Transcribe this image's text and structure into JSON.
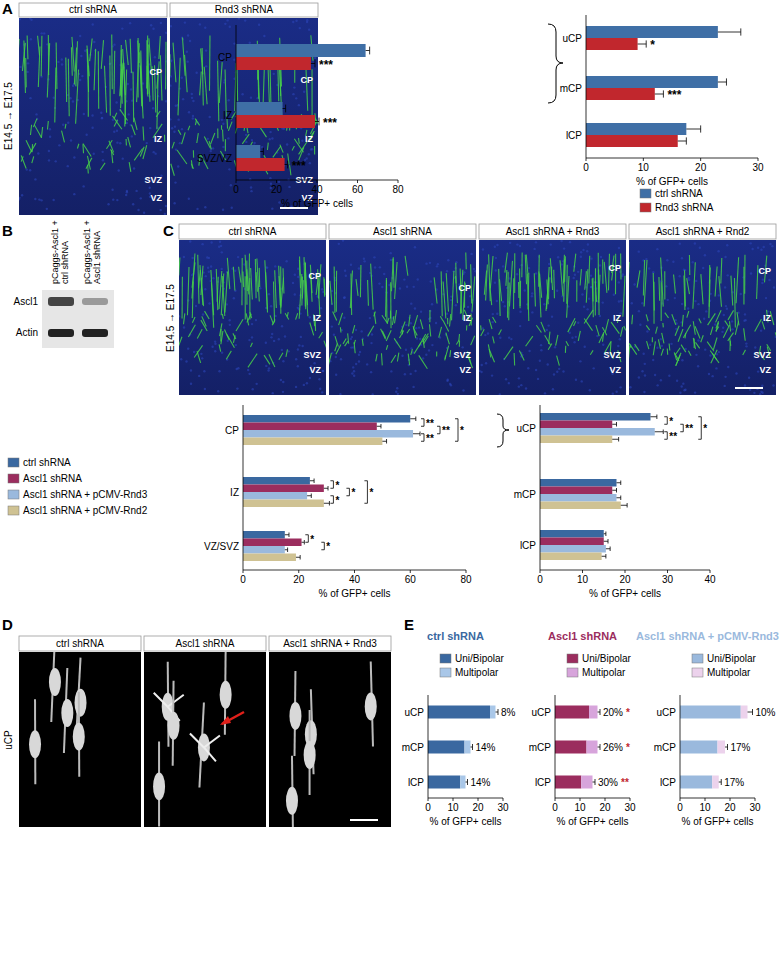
{
  "panels": {
    "A": {
      "letter": "A",
      "side_label": "E14.5 → E17.5",
      "images": [
        {
          "header": "ctrl shRNA",
          "zones": [
            "CP",
            "IZ",
            "SVZ",
            "VZ"
          ]
        },
        {
          "header": "Rnd3 shRNA",
          "zones": [
            "CP",
            "IZ",
            "SVZ",
            "VZ"
          ]
        }
      ]
    },
    "B": {
      "letter": "B",
      "columns": [
        [
          "pCaggs-Ascl1 +",
          "ctrl shRNA"
        ],
        [
          "pCaggs-Ascl1 +",
          "Ascl1 shRNA"
        ]
      ],
      "rows": [
        "Ascl1",
        "Actin"
      ]
    },
    "C": {
      "letter": "C",
      "side_label": "E14.5 → E17.5",
      "images": [
        {
          "header": "ctrl shRNA",
          "zones": [
            "CP",
            "IZ",
            "SVZ",
            "VZ"
          ]
        },
        {
          "header": "Ascl1 shRNA",
          "zones": [
            "CP",
            "IZ",
            "SVZ",
            "VZ"
          ]
        },
        {
          "header": "Ascl1 shRNA + Rnd3",
          "zones": [
            "CP",
            "IZ",
            "SVZ",
            "VZ"
          ]
        },
        {
          "header": "Ascl1 shRNA + Rnd2",
          "zones": [
            "CP",
            "IZ",
            "SVZ",
            "VZ"
          ]
        }
      ]
    },
    "D": {
      "letter": "D",
      "side_label": "uCP",
      "images": [
        {
          "header": "ctrl shRNA"
        },
        {
          "header": "Ascl1 shRNA"
        },
        {
          "header": "Ascl1 shRNA + Rnd3"
        }
      ]
    },
    "E": {
      "letter": "E"
    }
  },
  "chart_data": [
    {
      "type": "bar",
      "orientation": "horizontal",
      "categories": [
        "CP",
        "IZ",
        "SVZ/VZ"
      ],
      "series": [
        {
          "color": "#3f6fa6",
          "values": [
            64,
            23,
            12
          ],
          "errors": [
            2,
            1.5,
            1.5
          ]
        },
        {
          "color": "#c1272d",
          "values": [
            37,
            39,
            24
          ],
          "errors": [
            2,
            2,
            1.5
          ]
        }
      ],
      "xlim": [
        0,
        80
      ],
      "xticks": [
        0,
        20,
        40,
        60,
        80
      ],
      "x_label": "% of GFP+ cells",
      "significance": [
        "***",
        "***",
        "***"
      ]
    },
    {
      "type": "bar",
      "orientation": "horizontal",
      "categories": [
        "uCP",
        "mCP",
        "lCP"
      ],
      "series": [
        {
          "name": "ctrl shRNA",
          "color": "#3f6fa6",
          "values": [
            23,
            23,
            17.5
          ],
          "errors": [
            4,
            1.5,
            2.5
          ]
        },
        {
          "name": "Rnd3 shRNA",
          "color": "#c1272d",
          "values": [
            9,
            12,
            16
          ],
          "errors": [
            1.5,
            1.5,
            1.5
          ]
        }
      ],
      "xlim": [
        0,
        30
      ],
      "xticks": [
        0,
        10,
        20,
        30
      ],
      "x_label": "% of GFP+ cells",
      "significance": [
        "*",
        "***",
        null
      ],
      "legend": "bottom"
    },
    {
      "type": "bar",
      "orientation": "horizontal",
      "categories": [
        "CP",
        "IZ",
        "VZ/SVZ"
      ],
      "series": [
        {
          "name": "ctrl shRNA",
          "color": "#3a68a0",
          "values": [
            60,
            24,
            15
          ],
          "errors": [
            2,
            1.5,
            1.5
          ]
        },
        {
          "name": "Ascl1 shRNA",
          "color": "#9b2d5e",
          "values": [
            48,
            29,
            21
          ],
          "errors": [
            1.5,
            1.5,
            1
          ]
        },
        {
          "name": "Ascl1 shRNA + pCMV-Rnd3",
          "color": "#9ab9dd",
          "values": [
            61,
            23,
            15
          ],
          "errors": [
            2.5,
            1.5,
            1
          ]
        },
        {
          "name": "Ascl1 shRNA + pCMV-Rnd2",
          "color": "#cfc293",
          "values": [
            50,
            29,
            19
          ],
          "errors": [
            1.5,
            2,
            1.5
          ]
        }
      ],
      "xlim": [
        0,
        80
      ],
      "xticks": [
        0,
        20,
        40,
        60,
        80
      ],
      "x_label": "% of GFP+ cells",
      "legend": "left",
      "brackets": [
        {
          "category": 0,
          "series": [
            0,
            1
          ],
          "label": "**"
        },
        {
          "category": 0,
          "series": [
            1,
            2
          ],
          "label": "**"
        },
        {
          "category": 0,
          "series": [
            2,
            3
          ],
          "label": "**"
        },
        {
          "category": 0,
          "series": [
            0,
            3
          ],
          "label": "*"
        },
        {
          "category": 1,
          "series": [
            0,
            1
          ],
          "label": "*"
        },
        {
          "category": 1,
          "series": [
            1,
            2
          ],
          "label": "*"
        },
        {
          "category": 1,
          "series": [
            2,
            3
          ],
          "label": "*"
        },
        {
          "category": 1,
          "series": [
            0,
            3
          ],
          "label": "*"
        },
        {
          "category": 2,
          "series": [
            0,
            1
          ],
          "label": "*"
        },
        {
          "category": 2,
          "series": [
            1,
            2
          ],
          "label": "*"
        }
      ]
    },
    {
      "type": "bar",
      "orientation": "horizontal",
      "categories": [
        "uCP",
        "mCP",
        "lCP"
      ],
      "series": [
        {
          "color": "#3a68a0",
          "values": [
            26,
            18,
            15
          ],
          "errors": [
            1.5,
            1,
            0.5
          ]
        },
        {
          "color": "#9b2d5e",
          "values": [
            17,
            17,
            15
          ],
          "errors": [
            1,
            1,
            1
          ]
        },
        {
          "color": "#9ab9dd",
          "values": [
            27,
            18,
            15.5
          ],
          "errors": [
            2,
            1,
            1
          ]
        },
        {
          "color": "#cfc293",
          "values": [
            17,
            19,
            14.5
          ],
          "errors": [
            1.5,
            1.5,
            1
          ]
        }
      ],
      "xlim": [
        0,
        40
      ],
      "xticks": [
        0,
        10,
        20,
        30,
        40
      ],
      "x_label": "% of GFP+ cells",
      "brackets": [
        {
          "category": 0,
          "series": [
            0,
            1
          ],
          "label": "*"
        },
        {
          "category": 0,
          "series": [
            1,
            2
          ],
          "label": "**"
        },
        {
          "category": 0,
          "series": [
            2,
            3
          ],
          "label": "**"
        },
        {
          "category": 0,
          "series": [
            0,
            3
          ],
          "label": "*"
        }
      ]
    },
    {
      "type": "bar",
      "orientation": "horizontal",
      "stacked": true,
      "title": "ctrl shRNA",
      "categories": [
        "uCP",
        "mCP",
        "lCP"
      ],
      "series": [
        {
          "name": "Uni/Bipolar",
          "color": "#3a68a0",
          "values": [
            24.8,
            14.6,
            12.9
          ]
        },
        {
          "name": "Multipolar",
          "color": "#a9c7e8",
          "values": [
            2.2,
            2.4,
            2.1
          ],
          "errors": [
            1,
            0.8,
            0.8
          ]
        }
      ],
      "xlim": [
        0,
        30
      ],
      "xticks": [
        0,
        10,
        20,
        30
      ],
      "x_label": "% of GFP+ cells",
      "legend": "top",
      "annotations": [
        "8%",
        "14%",
        "14%"
      ]
    },
    {
      "type": "bar",
      "orientation": "horizontal",
      "stacked": true,
      "title": "Ascl1 shRNA",
      "categories": [
        "uCP",
        "mCP",
        "lCP"
      ],
      "series": [
        {
          "name": "Uni/Bipolar",
          "color": "#9b2d5e",
          "values": [
            13.6,
            12.6,
            10.5
          ]
        },
        {
          "name": "Multipolar",
          "color": "#d7a4db",
          "values": [
            3.4,
            4.4,
            4.5
          ],
          "errors": [
            1,
            1,
            1
          ]
        }
      ],
      "xlim": [
        0,
        30
      ],
      "xticks": [
        0,
        10,
        20,
        30
      ],
      "x_label": "% of GFP+ cells",
      "legend": "top",
      "annotations": [
        "20%",
        "26%",
        "30%"
      ],
      "significance": [
        "*",
        "*",
        "**"
      ]
    },
    {
      "type": "bar",
      "orientation": "horizontal",
      "stacked": true,
      "title": "Ascl1 shRNA + pCMV-Rnd3",
      "categories": [
        "uCP",
        "mCP",
        "lCP"
      ],
      "series": [
        {
          "name": "Uni/Bipolar",
          "color": "#9ab9dd",
          "values": [
            24.3,
            15,
            12.9
          ]
        },
        {
          "name": "Multipolar",
          "color": "#ecd2ec",
          "values": [
            2.7,
            3,
            2.6
          ],
          "errors": [
            2,
            1,
            1
          ]
        }
      ],
      "xlim": [
        0,
        30
      ],
      "xticks": [
        0,
        10,
        20,
        30
      ],
      "x_label": "% of GFP+ cells",
      "legend": "top",
      "annotations": [
        "10%",
        "17%",
        "17%"
      ]
    }
  ]
}
